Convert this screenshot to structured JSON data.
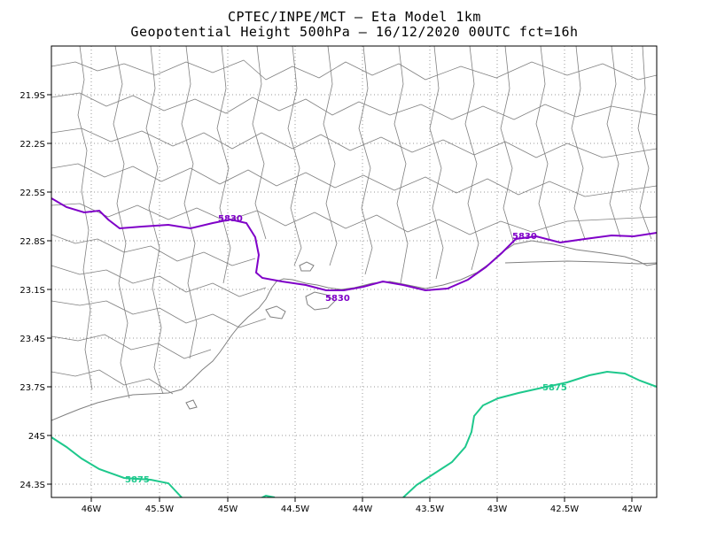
{
  "header": {
    "title_line1": "CPTEC/INPE/MCT —  Eta Model 1km",
    "title_line2": "Geopotential Height 500hPa — 16/12/2020 00UTC fct=16h"
  },
  "map": {
    "lon_ticks": [
      "46W",
      "45.5W",
      "45W",
      "44.5W",
      "44W",
      "43.5W",
      "43W",
      "42.5W",
      "42W"
    ],
    "lat_ticks": [
      "21.9S",
      "22.2S",
      "22.5S",
      "22.8S",
      "23.1S",
      "23.4S",
      "23.7S",
      "24S",
      "24.3S"
    ],
    "contours": [
      {
        "value": "5830",
        "color": "#7f00c8"
      },
      {
        "value": "5875",
        "color": "#1ec88c"
      }
    ],
    "contour_labels": [
      {
        "text": "5830",
        "color": "#7f00c8"
      },
      {
        "text": "5830",
        "color": "#7f00c8"
      },
      {
        "text": "5830",
        "color": "#7f00c8"
      },
      {
        "text": "5875",
        "color": "#1ec88c"
      },
      {
        "text": "5875",
        "color": "#1ec88c"
      }
    ],
    "colors": {
      "grid": "#999999",
      "boundaries": "#808080",
      "frame": "#000000"
    }
  }
}
